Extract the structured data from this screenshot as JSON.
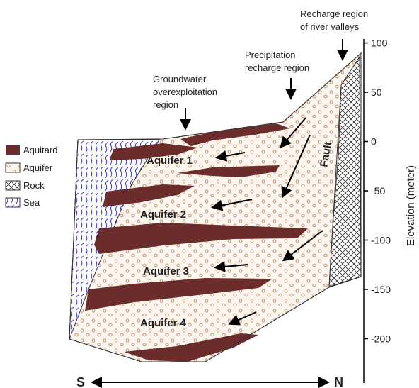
{
  "legend": [
    "Aquitard",
    "Aquifer",
    "Rock",
    "Sea"
  ],
  "region_labels": {
    "river_valleys": [
      "Recharge region",
      "of river valleys"
    ],
    "precipitation": [
      "Precipitation",
      "recharge region"
    ],
    "overexploitation": [
      "Groundwater",
      "overexploitation",
      "region"
    ]
  },
  "aquifers": [
    "Aquifer 1",
    "Aquifer 2",
    "Aquifer 3",
    "Aquifer 4"
  ],
  "fault": "Fault",
  "axis": {
    "title": "Elevation (meter)",
    "ylim": [
      -245,
      104
    ],
    "yticks": [
      100,
      50,
      0,
      -50,
      -100,
      -150,
      -200
    ]
  },
  "direction": {
    "left": "S",
    "right": "N"
  }
}
